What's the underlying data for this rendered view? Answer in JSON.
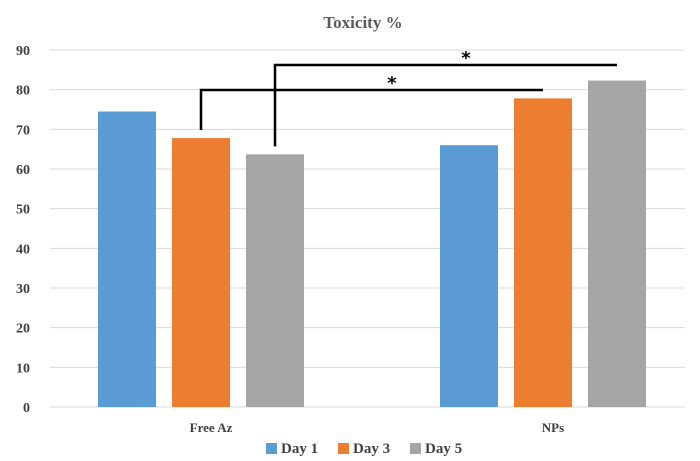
{
  "chart_data": {
    "type": "bar",
    "title": "Toxicity %",
    "xlabel": "",
    "ylabel": "",
    "categories": [
      "Free Az",
      "NPs"
    ],
    "series": [
      {
        "name": "Day 1",
        "values": [
          74.5,
          66
        ],
        "color": "#5b9bd5"
      },
      {
        "name": "Day 3",
        "values": [
          67.8,
          77.8
        ],
        "color": "#ed7d31"
      },
      {
        "name": "Day 5",
        "values": [
          63.7,
          82.3
        ],
        "color": "#a5a5a5"
      }
    ],
    "ylim": [
      0,
      90
    ],
    "yticks": [
      0,
      10,
      20,
      30,
      40,
      50,
      60,
      70,
      80,
      90
    ],
    "grid": true,
    "legend": "bottom",
    "annotations": [
      {
        "text": "*",
        "from": {
          "category": 0,
          "series": 1
        },
        "to": {
          "category": 1,
          "series": 1
        }
      },
      {
        "text": "*",
        "from": {
          "category": 0,
          "series": 2
        },
        "to": {
          "category": 1,
          "series": 2
        }
      }
    ]
  }
}
